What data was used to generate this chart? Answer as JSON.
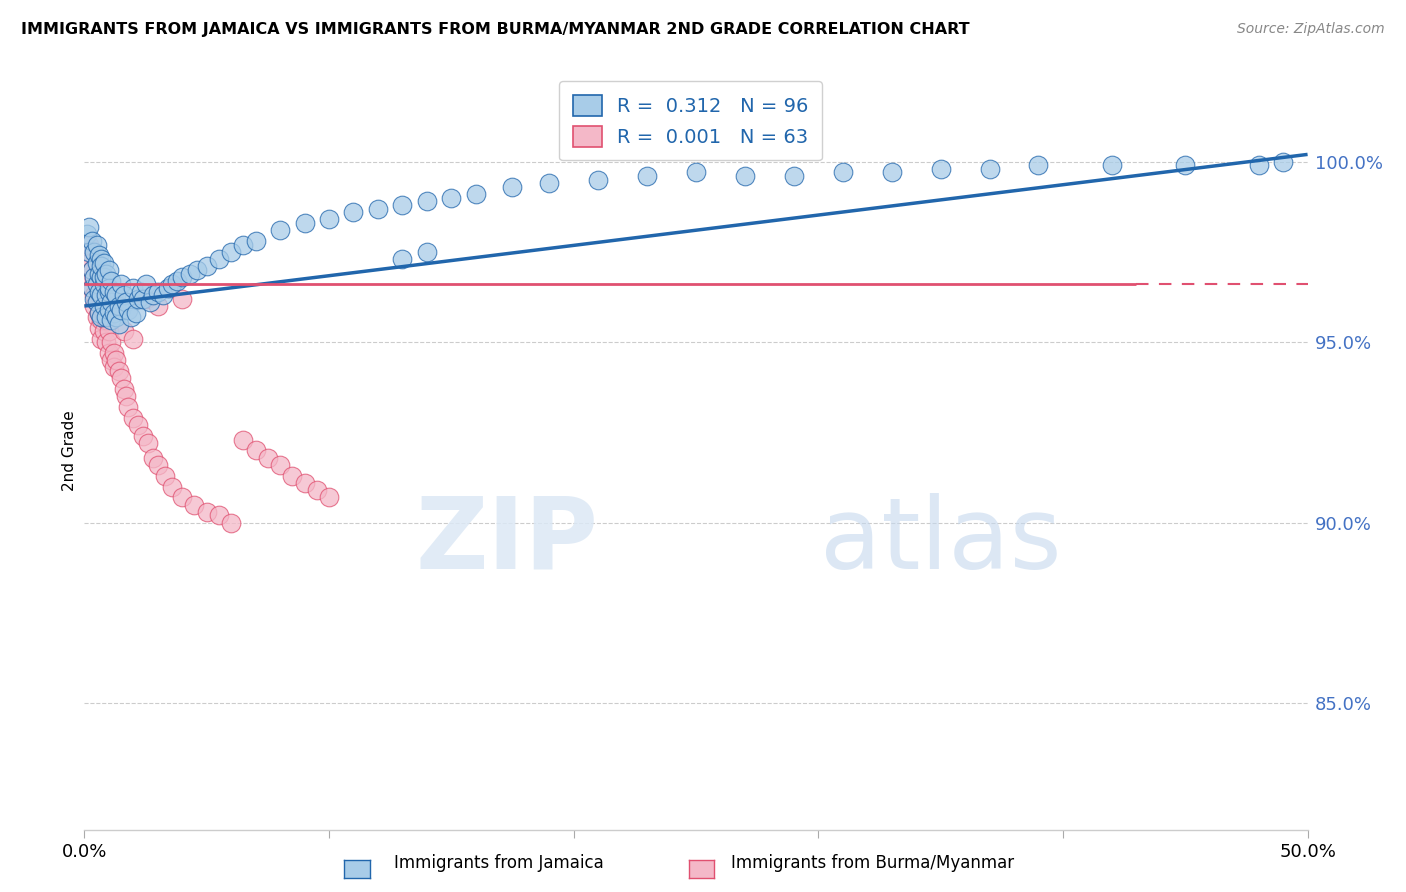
{
  "title": "IMMIGRANTS FROM JAMAICA VS IMMIGRANTS FROM BURMA/MYANMAR 2ND GRADE CORRELATION CHART",
  "source": "Source: ZipAtlas.com",
  "ylabel": "2nd Grade",
  "ytick_labels": [
    "100.0%",
    "95.0%",
    "90.0%",
    "85.0%"
  ],
  "ytick_values": [
    1.0,
    0.95,
    0.9,
    0.85
  ],
  "xlim": [
    0.0,
    0.5
  ],
  "ylim": [
    0.815,
    1.025
  ],
  "legend_jamaica_R": "0.312",
  "legend_jamaica_N": "96",
  "legend_burma_R": "0.001",
  "legend_burma_N": "63",
  "color_jamaica": "#a8cce8",
  "color_burma": "#f4b8c8",
  "trendline_jamaica_color": "#2166ac",
  "trendline_burma_color": "#e05070",
  "jamaica_trendline": [
    0.96,
    1.002
  ],
  "burma_trendline_y": 0.966,
  "burma_trendline_x_end": 0.43,
  "jamaica_x": [
    0.001,
    0.002,
    0.002,
    0.003,
    0.003,
    0.003,
    0.004,
    0.004,
    0.004,
    0.005,
    0.005,
    0.005,
    0.005,
    0.006,
    0.006,
    0.006,
    0.006,
    0.007,
    0.007,
    0.007,
    0.007,
    0.007,
    0.008,
    0.008,
    0.008,
    0.008,
    0.009,
    0.009,
    0.009,
    0.01,
    0.01,
    0.01,
    0.01,
    0.011,
    0.011,
    0.011,
    0.012,
    0.012,
    0.013,
    0.013,
    0.014,
    0.014,
    0.015,
    0.015,
    0.016,
    0.017,
    0.018,
    0.019,
    0.02,
    0.021,
    0.022,
    0.023,
    0.024,
    0.025,
    0.027,
    0.028,
    0.03,
    0.032,
    0.034,
    0.036,
    0.038,
    0.04,
    0.043,
    0.046,
    0.05,
    0.055,
    0.06,
    0.065,
    0.07,
    0.08,
    0.09,
    0.1,
    0.11,
    0.12,
    0.13,
    0.14,
    0.15,
    0.16,
    0.175,
    0.19,
    0.21,
    0.23,
    0.25,
    0.27,
    0.29,
    0.31,
    0.33,
    0.35,
    0.37,
    0.39,
    0.42,
    0.45,
    0.48,
    0.49,
    0.13,
    0.14
  ],
  "jamaica_y": [
    0.98,
    0.982,
    0.975,
    0.978,
    0.97,
    0.965,
    0.975,
    0.968,
    0.962,
    0.977,
    0.972,
    0.966,
    0.961,
    0.974,
    0.969,
    0.964,
    0.958,
    0.973,
    0.968,
    0.963,
    0.957,
    0.971,
    0.972,
    0.966,
    0.96,
    0.968,
    0.969,
    0.963,
    0.957,
    0.97,
    0.964,
    0.959,
    0.965,
    0.967,
    0.961,
    0.956,
    0.964,
    0.958,
    0.963,
    0.957,
    0.96,
    0.955,
    0.959,
    0.966,
    0.963,
    0.961,
    0.959,
    0.957,
    0.965,
    0.958,
    0.962,
    0.964,
    0.962,
    0.966,
    0.961,
    0.963,
    0.964,
    0.963,
    0.965,
    0.966,
    0.967,
    0.968,
    0.969,
    0.97,
    0.971,
    0.973,
    0.975,
    0.977,
    0.978,
    0.981,
    0.983,
    0.984,
    0.986,
    0.987,
    0.988,
    0.989,
    0.99,
    0.991,
    0.993,
    0.994,
    0.995,
    0.996,
    0.997,
    0.996,
    0.996,
    0.997,
    0.997,
    0.998,
    0.998,
    0.999,
    0.999,
    0.999,
    0.999,
    1.0,
    0.973,
    0.975
  ],
  "burma_x": [
    0.001,
    0.002,
    0.002,
    0.003,
    0.003,
    0.004,
    0.004,
    0.004,
    0.005,
    0.005,
    0.005,
    0.006,
    0.006,
    0.006,
    0.007,
    0.007,
    0.007,
    0.008,
    0.008,
    0.009,
    0.009,
    0.01,
    0.01,
    0.011,
    0.011,
    0.012,
    0.012,
    0.013,
    0.014,
    0.015,
    0.016,
    0.017,
    0.018,
    0.02,
    0.022,
    0.024,
    0.026,
    0.028,
    0.03,
    0.033,
    0.036,
    0.04,
    0.045,
    0.05,
    0.055,
    0.06,
    0.065,
    0.07,
    0.075,
    0.08,
    0.085,
    0.09,
    0.095,
    0.1,
    0.035,
    0.04,
    0.025,
    0.03,
    0.013,
    0.008,
    0.016,
    0.02,
    0.002
  ],
  "burma_y": [
    0.975,
    0.972,
    0.968,
    0.97,
    0.965,
    0.968,
    0.963,
    0.96,
    0.966,
    0.961,
    0.957,
    0.963,
    0.958,
    0.954,
    0.961,
    0.956,
    0.951,
    0.958,
    0.953,
    0.956,
    0.95,
    0.953,
    0.947,
    0.95,
    0.945,
    0.947,
    0.943,
    0.945,
    0.942,
    0.94,
    0.937,
    0.935,
    0.932,
    0.929,
    0.927,
    0.924,
    0.922,
    0.918,
    0.916,
    0.913,
    0.91,
    0.907,
    0.905,
    0.903,
    0.902,
    0.9,
    0.923,
    0.92,
    0.918,
    0.916,
    0.913,
    0.911,
    0.909,
    0.907,
    0.965,
    0.962,
    0.962,
    0.96,
    0.96,
    0.957,
    0.953,
    0.951,
    0.977
  ]
}
